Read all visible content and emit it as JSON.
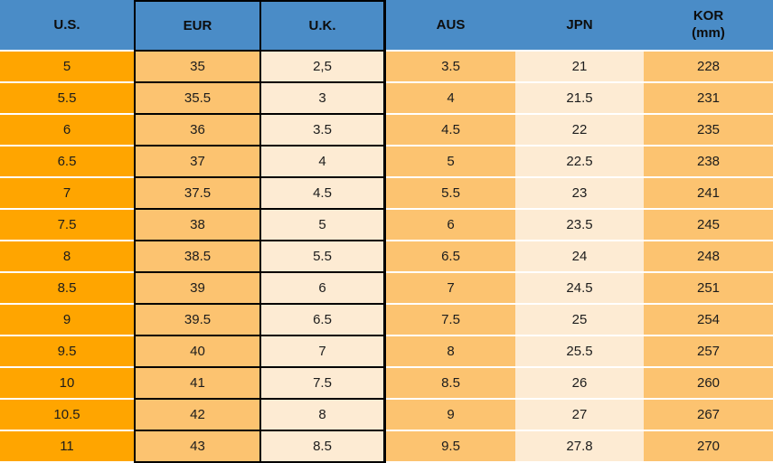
{
  "table": {
    "columns": [
      {
        "key": "us",
        "label": "U.S."
      },
      {
        "key": "eur",
        "label": "EUR"
      },
      {
        "key": "uk",
        "label": "U.K."
      },
      {
        "key": "aus",
        "label": "AUS"
      },
      {
        "key": "jpn",
        "label": "JPN"
      },
      {
        "key": "kor",
        "label": "KOR",
        "label_line2": "(mm)"
      }
    ],
    "rows": [
      [
        "5",
        "35",
        "2,5",
        "3.5",
        "21",
        "228"
      ],
      [
        "5.5",
        "35.5",
        "3",
        "4",
        "21.5",
        "231"
      ],
      [
        "6",
        "36",
        "3.5",
        "4.5",
        "22",
        "235"
      ],
      [
        "6.5",
        "37",
        "4",
        "5",
        "22.5",
        "238"
      ],
      [
        "7",
        "37.5",
        "4.5",
        "5.5",
        "23",
        "241"
      ],
      [
        "7.5",
        "38",
        "5",
        "6",
        "23.5",
        "245"
      ],
      [
        "8",
        "38.5",
        "5.5",
        "6.5",
        "24",
        "248"
      ],
      [
        "8.5",
        "39",
        "6",
        "7",
        "24.5",
        "251"
      ],
      [
        "9",
        "39.5",
        "6.5",
        "7.5",
        "25",
        "254"
      ],
      [
        "9.5",
        "40",
        "7",
        "8",
        "25.5",
        "257"
      ],
      [
        "10",
        "41",
        "7.5",
        "8.5",
        "26",
        "260"
      ],
      [
        "10.5",
        "42",
        "8",
        "9",
        "27",
        "267"
      ],
      [
        "11",
        "43",
        "8.5",
        "9.5",
        "27.8",
        "270"
      ]
    ]
  },
  "colors": {
    "header_blue": "#4A8CC7",
    "us_orange": "#FFA500",
    "light_orange": "#FCC370",
    "cream": "#FDEBD3",
    "grid_line_black": "#000000",
    "row_separator_white": "#FFFFFF",
    "header_text": "#0d0d0d",
    "cell_text": "#1c1c1c"
  }
}
